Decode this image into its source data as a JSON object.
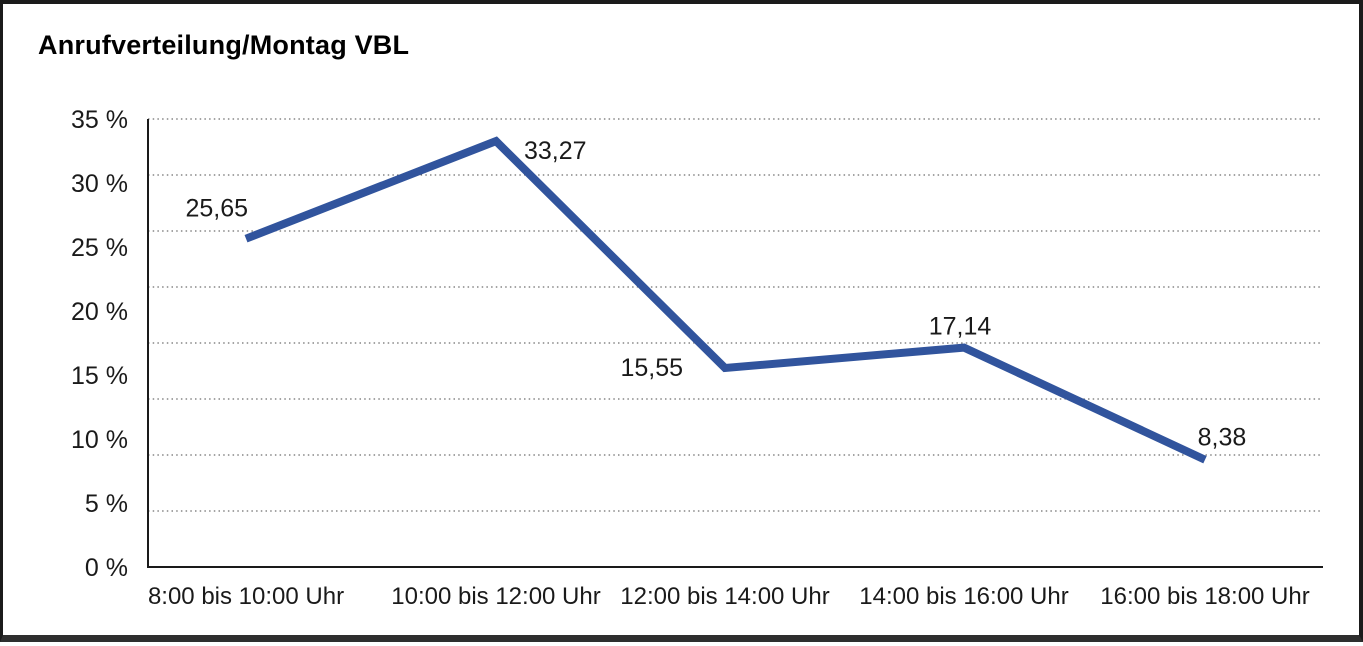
{
  "chart": {
    "title": "Anrufverteilung/Montag VBL"
  },
  "chart_data": {
    "type": "line",
    "title": "Anrufverteilung/Montag VBL",
    "categories": [
      "8:00 bis 10:00 Uhr",
      "10:00 bis 12:00 Uhr",
      "12:00 bis 14:00 Uhr",
      "14:00 bis 16:00 Uhr",
      "16:00 bis 18:00 Uhr"
    ],
    "values": [
      25.65,
      33.27,
      15.55,
      17.14,
      8.38
    ],
    "point_labels": [
      "25,65",
      "33,27",
      "15,55",
      "17,14",
      "8,38"
    ],
    "ytick_labels": [
      "35 %",
      "30 %",
      "25 %",
      "20 %",
      "15 %",
      "10 %",
      "5 %",
      "0 %"
    ],
    "ylim": [
      0,
      35
    ],
    "xlabel": "",
    "ylabel": "",
    "grid": "horizontal-dotted",
    "legend": "none",
    "line_color": "#31549D",
    "axis_color": "#1a1a1a",
    "gridline_color": "#4a4a4a"
  }
}
